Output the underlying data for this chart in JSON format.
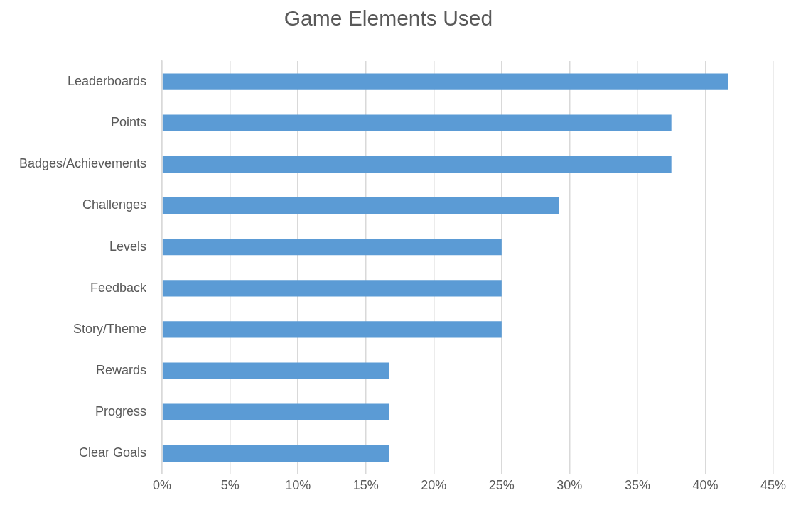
{
  "chart_data": {
    "type": "bar",
    "orientation": "horizontal",
    "title": "Game Elements Used",
    "categories": [
      "Leaderboards",
      "Points",
      "Badges/Achievements",
      "Challenges",
      "Levels",
      "Feedback",
      "Story/Theme",
      "Rewards",
      "Progress",
      "Clear Goals"
    ],
    "values": [
      41.7,
      37.5,
      37.5,
      29.2,
      25,
      25,
      25,
      16.7,
      16.7,
      16.7
    ],
    "color": "#5b9bd5",
    "xlim": [
      0,
      45
    ],
    "xticks": [
      {
        "value": 0,
        "label": "0%"
      },
      {
        "value": 5,
        "label": "5%"
      },
      {
        "value": 10,
        "label": "10%"
      },
      {
        "value": 15,
        "label": "15%"
      },
      {
        "value": 20,
        "label": "20%"
      },
      {
        "value": 25,
        "label": "25%"
      },
      {
        "value": 30,
        "label": "30%"
      },
      {
        "value": 35,
        "label": "35%"
      },
      {
        "value": 40,
        "label": "40%"
      },
      {
        "value": 45,
        "label": "45%"
      }
    ],
    "grid": "x",
    "legend": false
  }
}
